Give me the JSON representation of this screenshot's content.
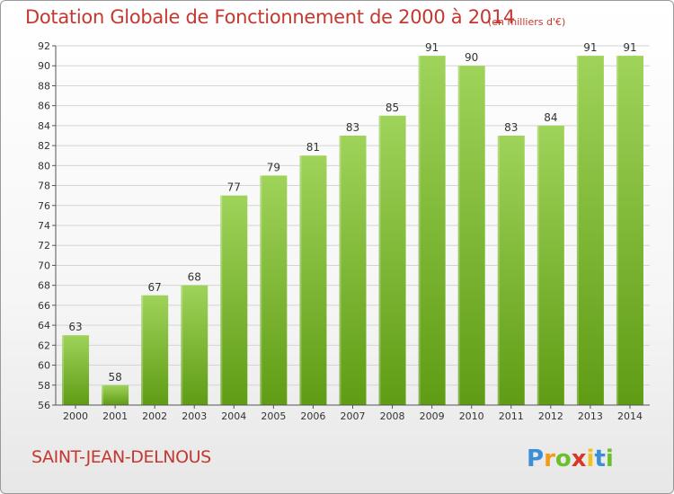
{
  "header": {
    "title": "Dotation Globale de Fonctionnement de 2000 à 2014",
    "unit_note": "(en milliers d'€)"
  },
  "footer": {
    "commune": "SAINT-JEAN-DELNOUS",
    "brand": "Proxiti"
  },
  "colors": {
    "title": "#c4382f",
    "bar_top": "#9fd35a",
    "bar_bottom": "#5f9c14",
    "grid": "#d4d4d4",
    "axis_text": "#333333"
  },
  "chart_data": {
    "type": "bar",
    "title": "Dotation Globale de Fonctionnement de 2000 à 2014",
    "subtitle": "(en milliers d'€)",
    "xlabel": "",
    "ylabel": "",
    "categories": [
      "2000",
      "2001",
      "2002",
      "2003",
      "2004",
      "2005",
      "2006",
      "2007",
      "2008",
      "2009",
      "2010",
      "2011",
      "2012",
      "2013",
      "2014"
    ],
    "values": [
      63,
      58,
      67,
      68,
      77,
      79,
      81,
      83,
      85,
      91,
      90,
      83,
      84,
      91,
      91
    ],
    "ylim": [
      56,
      92
    ],
    "yticks": [
      56,
      58,
      60,
      62,
      64,
      66,
      68,
      70,
      72,
      74,
      76,
      78,
      80,
      82,
      84,
      86,
      88,
      90,
      92
    ],
    "grid": true,
    "data_labels": true,
    "legend": "none"
  }
}
